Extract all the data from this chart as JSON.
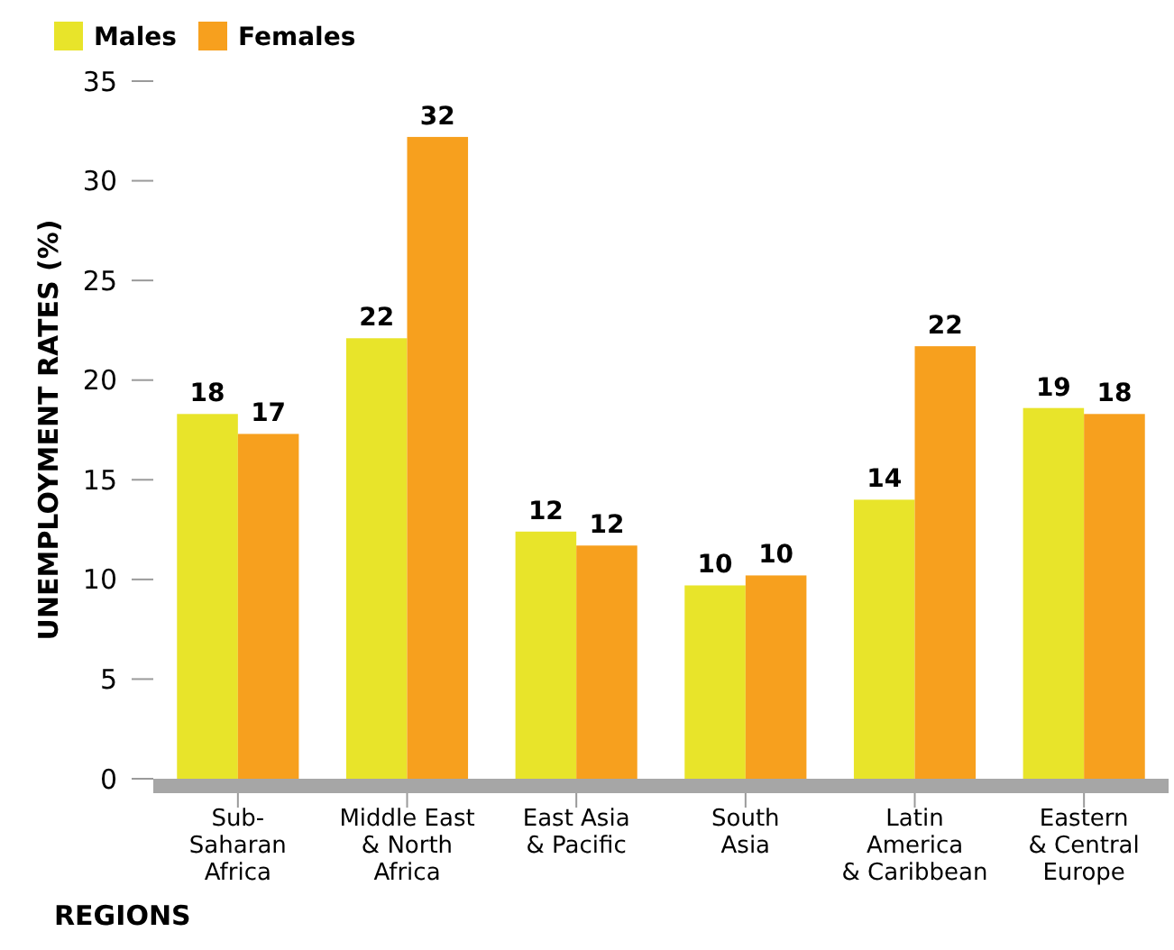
{
  "chart_data": {
    "type": "bar",
    "xlabel": "REGIONS",
    "ylabel": "UNEMPLOYMENT RATES (%)",
    "categories": [
      "Sub-\nSaharan\nAfrica",
      "Middle East\n& North\nAfrica",
      "East Asia\n& Pacific",
      "South\nAsia",
      "Latin\nAmerica\n& Caribbean",
      "Eastern\n& Central\nEurope"
    ],
    "series": [
      {
        "name": "Males",
        "color": "#e8e42a",
        "values": [
          18.3,
          22.1,
          12.4,
          9.7,
          14.0,
          18.6
        ],
        "value_labels": [
          "18",
          "22",
          "12",
          "10",
          "14",
          "19"
        ]
      },
      {
        "name": "Females",
        "color": "#f7a01e",
        "values": [
          17.3,
          32.2,
          11.7,
          10.2,
          21.7,
          18.3
        ],
        "value_labels": [
          "17",
          "32",
          "12",
          "10",
          "22",
          "18"
        ]
      }
    ],
    "ylim": [
      0,
      35
    ],
    "yticks": [
      0,
      5,
      10,
      15,
      20,
      25,
      30,
      35
    ],
    "grid": false,
    "legend": "top left"
  }
}
